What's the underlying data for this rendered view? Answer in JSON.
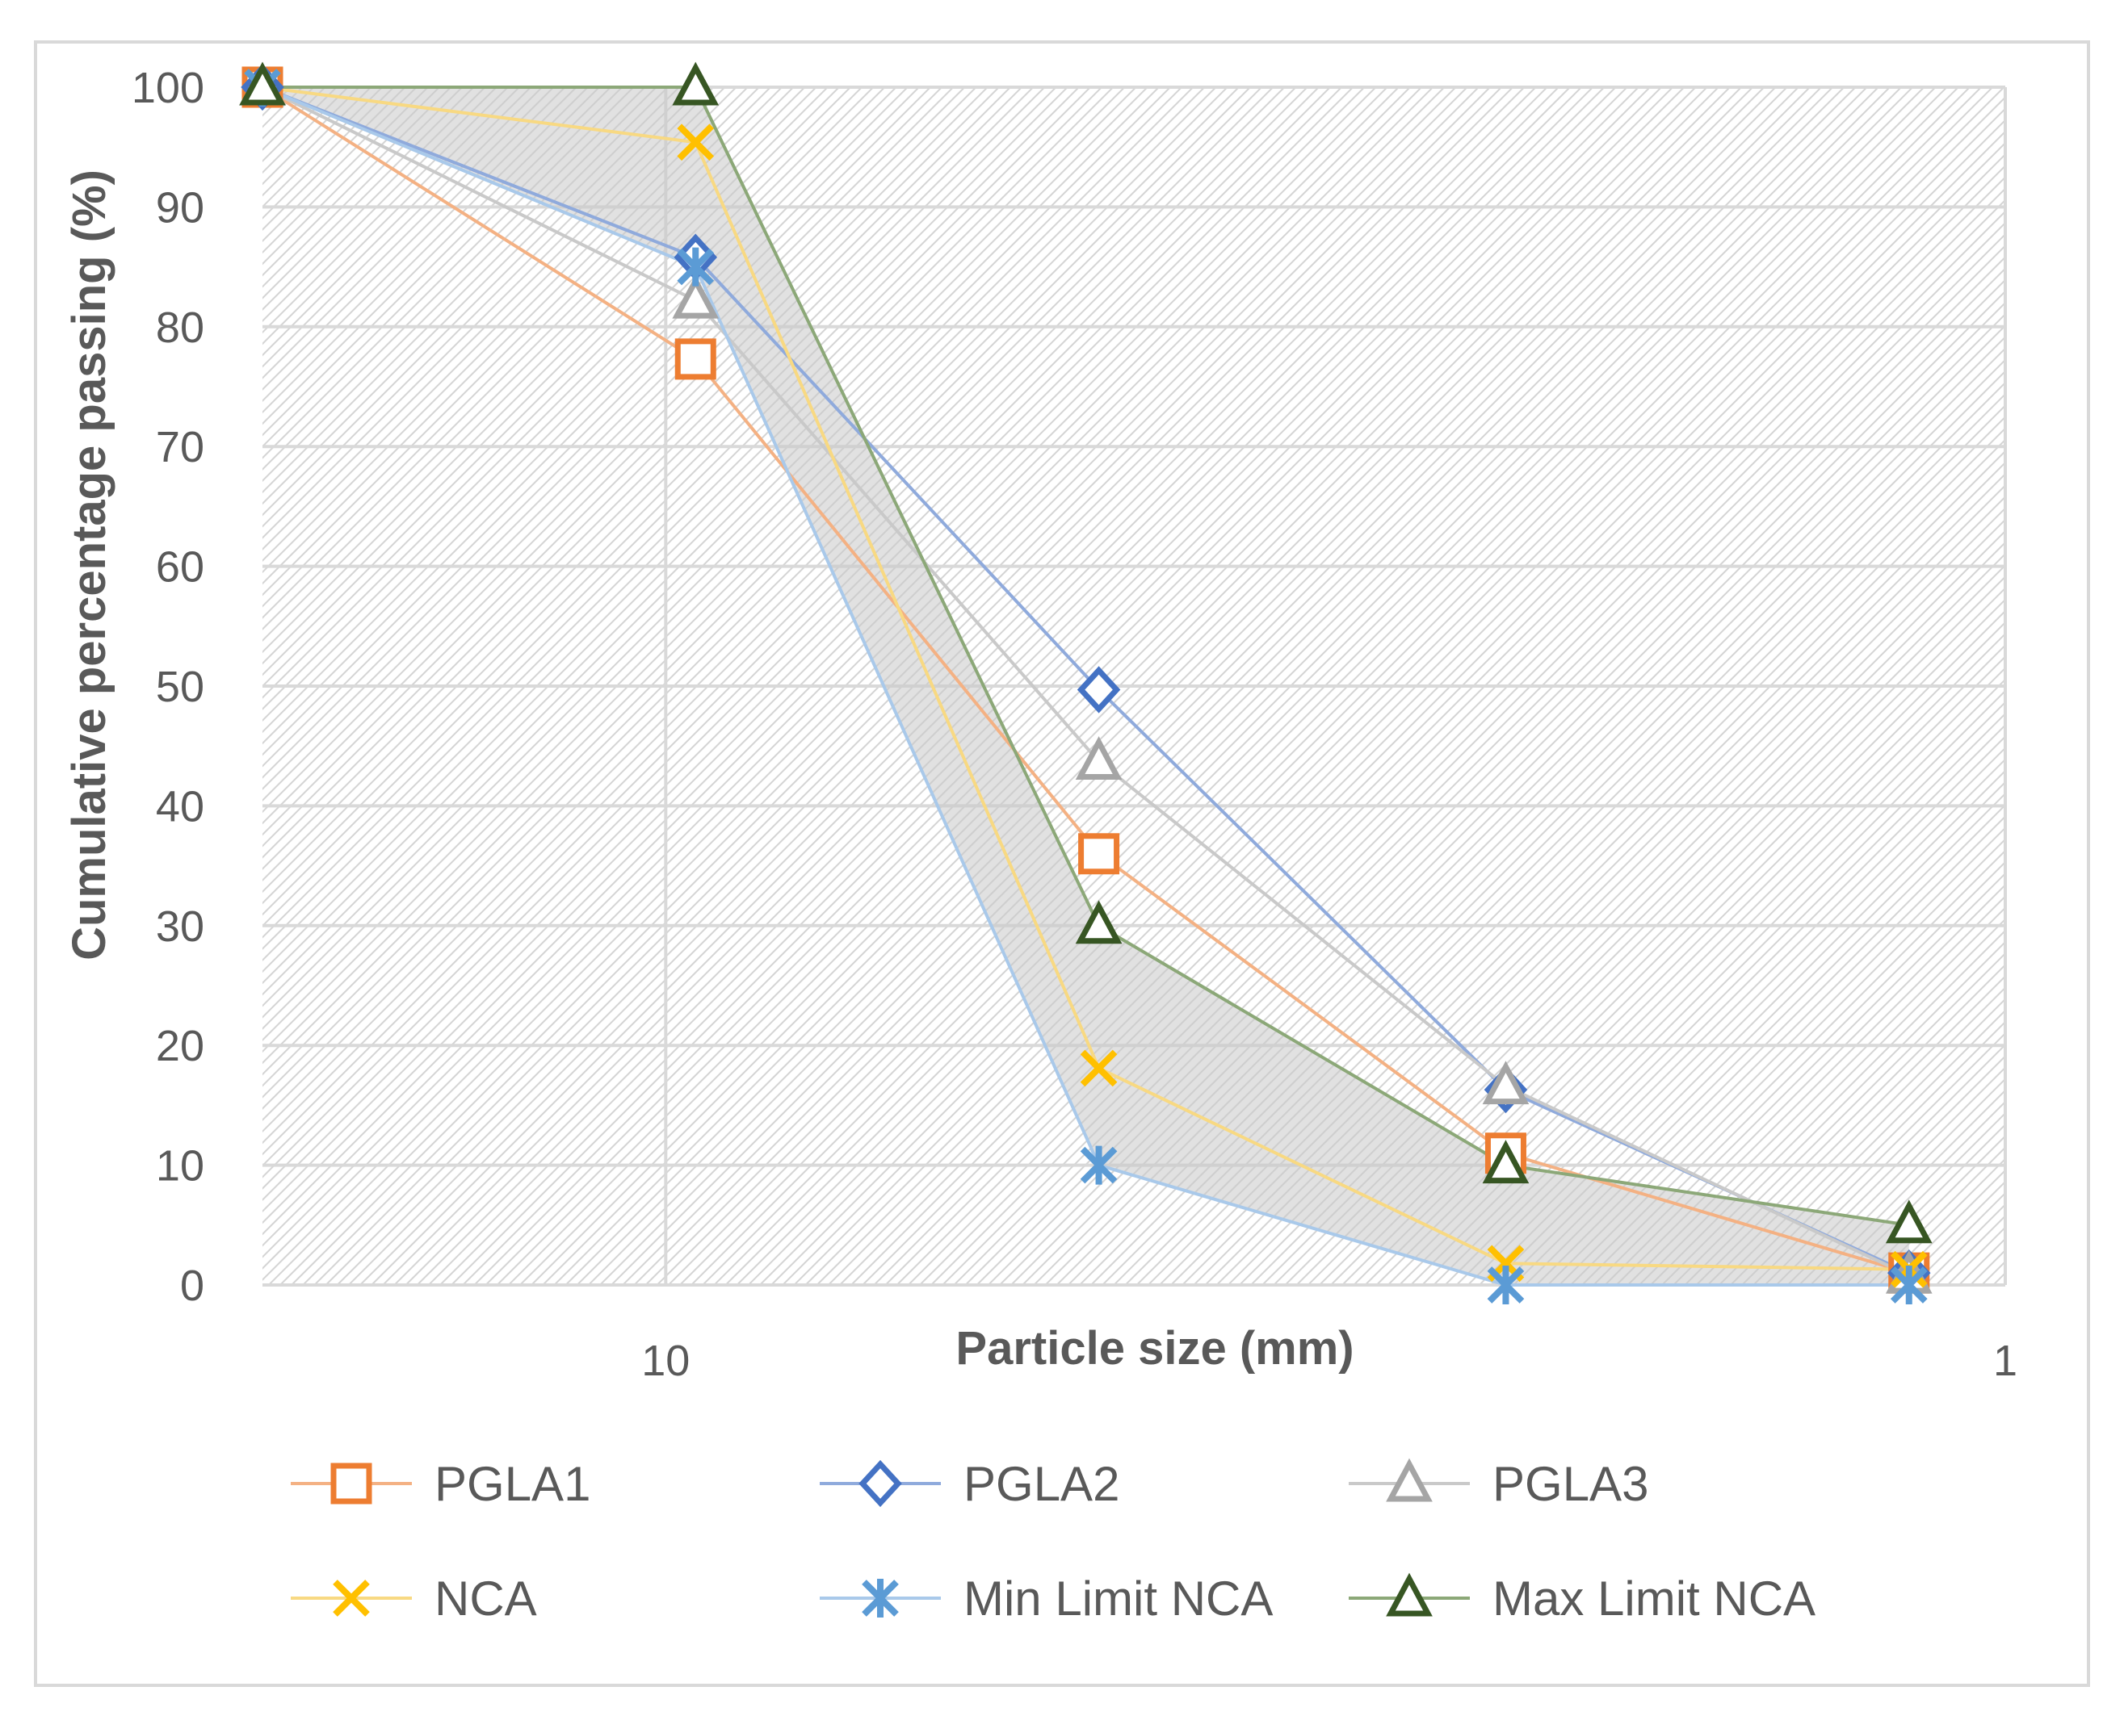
{
  "chart_data": {
    "type": "line",
    "x_scale": "log",
    "x_reversed": true,
    "xlabel": "Particle size (mm)",
    "ylabel": "Cumulative percentage passing (%)",
    "xlim": [
      20,
      1
    ],
    "ylim": [
      0,
      100
    ],
    "x_ticks": [
      10,
      1
    ],
    "x_tick_labels": [
      "10",
      "1"
    ],
    "y_ticks": [
      0,
      10,
      20,
      30,
      40,
      50,
      60,
      70,
      80,
      90,
      100
    ],
    "y_tick_labels": [
      "0",
      "10",
      "20",
      "30",
      "40",
      "50",
      "60",
      "70",
      "80",
      "90",
      "100"
    ],
    "grid": true,
    "legend_position": "bottom",
    "shaded_region_between": [
      "Min Limit NCA",
      "Max Limit NCA"
    ],
    "x": [
      20,
      9.5,
      4.75,
      2.36,
      1.18
    ],
    "series": [
      {
        "name": "PGLA1",
        "values": [
          100,
          77.3,
          36,
          11,
          1
        ],
        "color": "#ED7D31",
        "line_color": "#F4B183",
        "marker": "square"
      },
      {
        "name": "PGLA2",
        "values": [
          100,
          85.8,
          49.7,
          16.3,
          1
        ],
        "color": "#4472C4",
        "line_color": "#8FAADC",
        "marker": "diamond"
      },
      {
        "name": "PGLA3",
        "values": [
          100,
          82.2,
          43.7,
          16.6,
          0.8
        ],
        "color": "#A5A5A5",
        "line_color": "#C9C9C9",
        "marker": "triangle"
      },
      {
        "name": "NCA",
        "values": [
          100,
          95.4,
          18.1,
          1.8,
          1.3
        ],
        "color": "#FFC000",
        "line_color": "#F8D982",
        "marker": "x"
      },
      {
        "name": "Min Limit NCA",
        "values": [
          100,
          85,
          10,
          0,
          0
        ],
        "color": "#5B9BD5",
        "line_color": "#A9C9EA",
        "marker": "star"
      },
      {
        "name": "Max Limit NCA",
        "values": [
          100,
          100,
          30,
          10,
          5
        ],
        "color": "#375623",
        "line_color": "#8CA878",
        "marker": "triangle"
      }
    ]
  }
}
